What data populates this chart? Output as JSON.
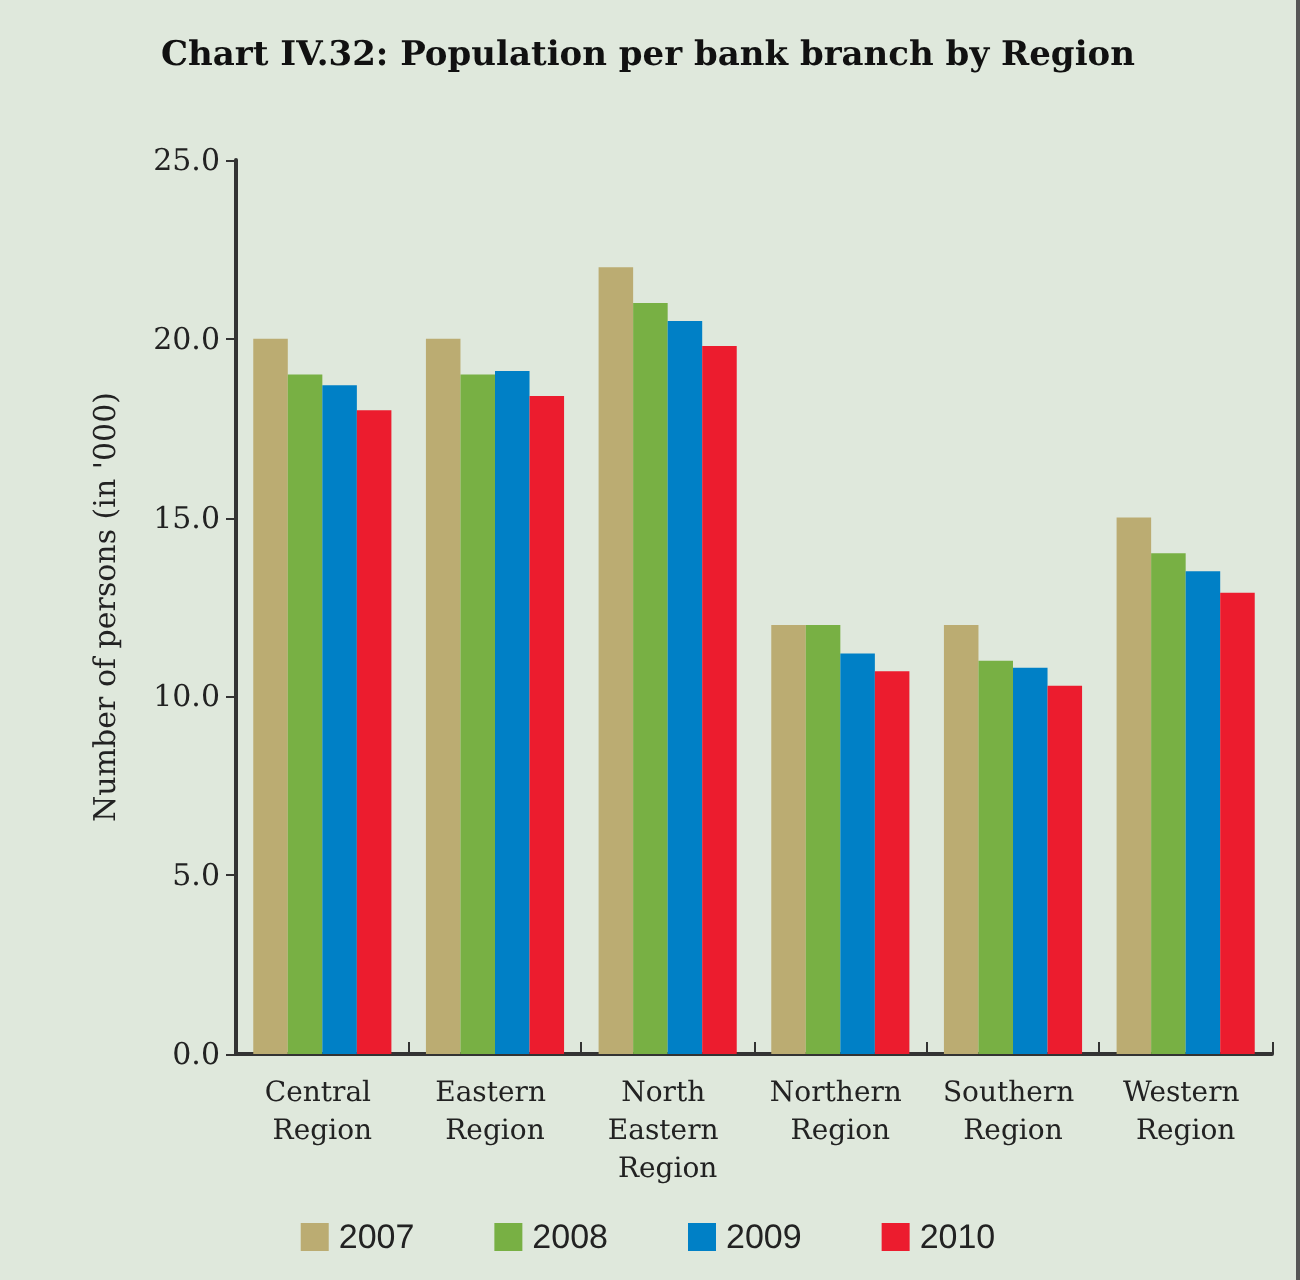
{
  "chart_data": {
    "type": "bar",
    "title": "Chart IV.32: Population per bank branch by Region",
    "ylabel": "Number of persons (in '000)",
    "categories": [
      "Central Region",
      "Eastern Region",
      "North Eastern Region",
      "Northern Region",
      "Southern Region",
      "Western Region"
    ],
    "series": [
      {
        "name": "2007",
        "color": "#bbac72",
        "values": [
          20.0,
          20.0,
          22.0,
          12.0,
          12.0,
          15.0
        ]
      },
      {
        "name": "2008",
        "color": "#78b044",
        "values": [
          19.0,
          19.0,
          21.0,
          12.0,
          11.0,
          14.0
        ]
      },
      {
        "name": "2009",
        "color": "#0080c6",
        "values": [
          18.7,
          19.1,
          20.5,
          11.2,
          10.8,
          13.5
        ]
      },
      {
        "name": "2010",
        "color": "#ec1c2e",
        "values": [
          18.0,
          18.4,
          19.8,
          10.7,
          10.3,
          12.9
        ]
      }
    ],
    "ylim": [
      0,
      25
    ],
    "yticks": [
      {
        "value": 0,
        "label": "0.0"
      },
      {
        "value": 5,
        "label": "5.0"
      },
      {
        "value": 10,
        "label": "10.0"
      },
      {
        "value": 15,
        "label": "15.0"
      },
      {
        "value": 20,
        "label": "20.0"
      },
      {
        "value": 25,
        "label": "25.0"
      }
    ],
    "grid": false,
    "legend": "bottom"
  }
}
